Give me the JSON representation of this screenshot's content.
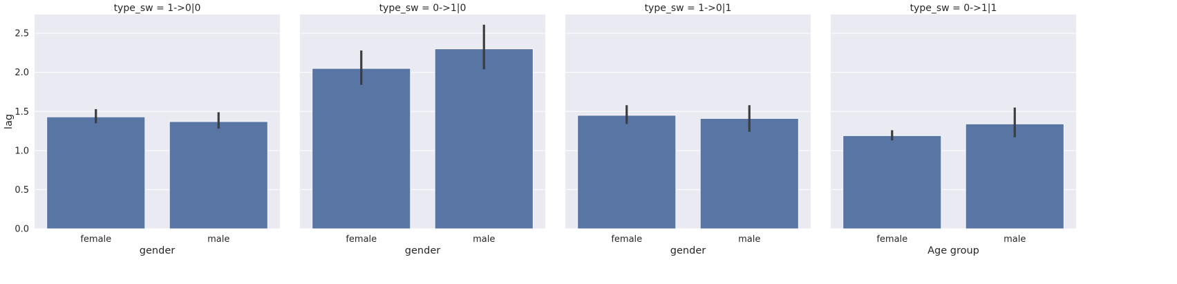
{
  "chart_data": {
    "type": "bar",
    "ylabel": "lag",
    "ylim": [
      0,
      2.74
    ],
    "yticks": [
      "0.0",
      "0.5",
      "1.0",
      "1.5",
      "2.0",
      "2.5"
    ],
    "grid": true,
    "bar_color": "#5975a4",
    "errorbar_color": "#3d3d3d",
    "panel_background": "#eaeaf2",
    "panels": [
      {
        "title": "type_sw = 1->0|0",
        "xlabel": "gender",
        "categories": [
          "female",
          "male"
        ],
        "values": [
          1.43,
          1.37
        ],
        "ci_low": [
          1.35,
          1.28
        ],
        "ci_high": [
          1.53,
          1.49
        ]
      },
      {
        "title": "type_sw = 0->1|0",
        "xlabel": "gender",
        "categories": [
          "female",
          "male"
        ],
        "values": [
          2.05,
          2.3
        ],
        "ci_low": [
          1.84,
          2.04
        ],
        "ci_high": [
          2.28,
          2.61
        ]
      },
      {
        "title": "type_sw = 1->0|1",
        "xlabel": "gender",
        "categories": [
          "female",
          "male"
        ],
        "values": [
          1.45,
          1.41
        ],
        "ci_low": [
          1.34,
          1.24
        ],
        "ci_high": [
          1.58,
          1.58
        ]
      },
      {
        "title": "type_sw = 0->1|1",
        "xlabel": "Age group",
        "categories": [
          "female",
          "male"
        ],
        "values": [
          1.19,
          1.34
        ],
        "ci_low": [
          1.13,
          1.17
        ],
        "ci_high": [
          1.26,
          1.55
        ]
      }
    ]
  }
}
